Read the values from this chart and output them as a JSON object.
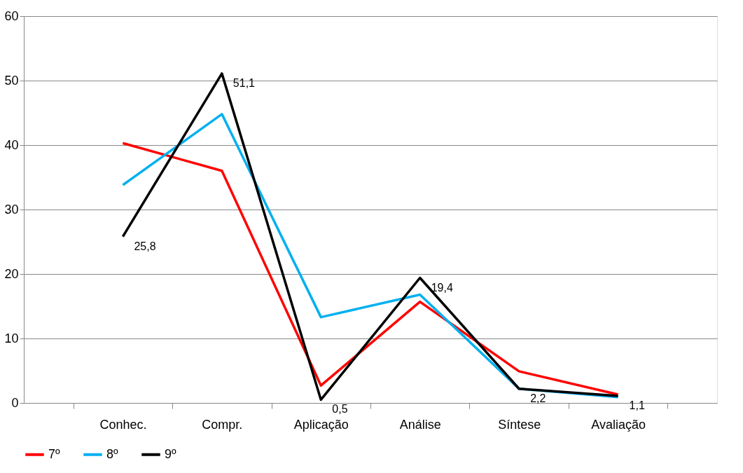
{
  "chart_data": {
    "type": "line",
    "categories": [
      "Conhec.",
      "Compr.",
      "Aplicação",
      "Análise",
      "Síntese",
      "Avaliação"
    ],
    "series": [
      {
        "name": "7º",
        "color": "#ff0000",
        "values": [
          40.3,
          36.0,
          2.7,
          15.7,
          4.9,
          1.3
        ]
      },
      {
        "name": "8º",
        "color": "#00b0f0",
        "values": [
          33.8,
          44.8,
          13.3,
          16.8,
          2.2,
          0.9
        ]
      },
      {
        "name": "9º",
        "color": "#000000",
        "values": [
          25.8,
          51.1,
          0.5,
          19.4,
          2.2,
          1.1
        ],
        "value_labels": [
          "25,8",
          "51,1",
          "0,5",
          "19,4",
          "2,2",
          "1,1"
        ]
      }
    ],
    "ylim": [
      0,
      60
    ],
    "yticks": [
      0,
      10,
      20,
      30,
      40,
      50,
      60
    ],
    "grid": "y",
    "legend": "bottom",
    "marker": "none",
    "line_style": "solid"
  }
}
